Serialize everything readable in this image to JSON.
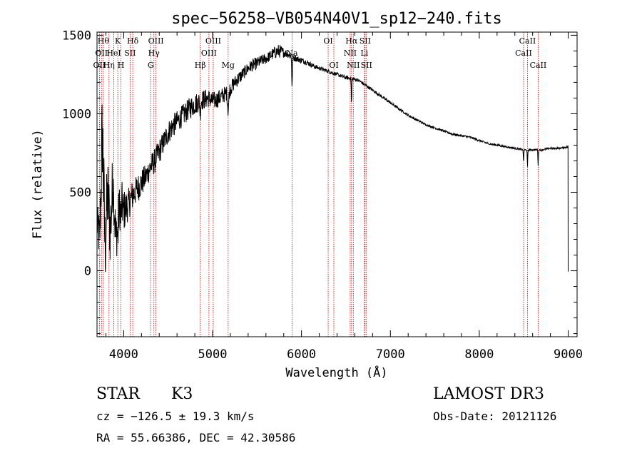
{
  "chart_data": {
    "type": "line",
    "title": "spec−56258−VB054N40V1_sp12−240.fits",
    "xlabel": "Wavelength (Å)",
    "ylabel": "Flux (relative)",
    "xlim": [
      3700,
      9100
    ],
    "ylim": [
      -420,
      1520
    ],
    "xticks": [
      4000,
      5000,
      6000,
      7000,
      8000,
      9000
    ],
    "yticks": [
      0,
      500,
      1000,
      1500
    ],
    "xtick_labels": [
      "4000",
      "5000",
      "6000",
      "7000",
      "8000",
      "9000"
    ],
    "ytick_labels": [
      "0",
      "500",
      "1000",
      "1500"
    ],
    "grid": false,
    "series": [
      {
        "name": "flux",
        "x": [
          3700,
          3730,
          3760,
          3790,
          3820,
          3850,
          3880,
          3910,
          3940,
          3970,
          4000,
          4050,
          4100,
          4150,
          4200,
          4250,
          4300,
          4350,
          4400,
          4450,
          4500,
          4550,
          4600,
          4650,
          4700,
          4750,
          4800,
          4850,
          4900,
          4950,
          5000,
          5050,
          5100,
          5150,
          5200,
          5250,
          5300,
          5350,
          5400,
          5450,
          5500,
          5550,
          5600,
          5650,
          5700,
          5750,
          5800,
          5850,
          5900,
          5950,
          6000,
          6050,
          6100,
          6150,
          6200,
          6250,
          6300,
          6350,
          6400,
          6450,
          6500,
          6550,
          6600,
          6650,
          6700,
          6750,
          6800,
          6850,
          6900,
          6950,
          7000,
          7100,
          7200,
          7300,
          7400,
          7500,
          7600,
          7700,
          7800,
          7900,
          8000,
          8100,
          8200,
          8300,
          8400,
          8500,
          8600,
          8700,
          8800,
          8900,
          9000
        ],
        "y": [
          300,
          200,
          900,
          150,
          500,
          250,
          600,
          200,
          350,
          450,
          380,
          420,
          480,
          520,
          560,
          600,
          660,
          700,
          760,
          820,
          880,
          920,
          950,
          980,
          1010,
          1040,
          1060,
          1080,
          1090,
          1100,
          1080,
          1090,
          1110,
          1130,
          1160,
          1200,
          1230,
          1260,
          1290,
          1310,
          1320,
          1340,
          1350,
          1370,
          1390,
          1400,
          1390,
          1380,
          1360,
          1350,
          1340,
          1330,
          1315,
          1300,
          1290,
          1280,
          1270,
          1260,
          1250,
          1240,
          1230,
          1225,
          1220,
          1210,
          1190,
          1170,
          1150,
          1130,
          1110,
          1090,
          1070,
          1030,
          990,
          960,
          930,
          910,
          890,
          870,
          860,
          850,
          830,
          810,
          800,
          790,
          780,
          770,
          770,
          770,
          780,
          780,
          790
        ],
        "noise": [
          120,
          180,
          350,
          300,
          250,
          250,
          200,
          180,
          160,
          150,
          140,
          100,
          100,
          90,
          90,
          80,
          80,
          80,
          80,
          75,
          75,
          75,
          70,
          70,
          70,
          70,
          70,
          65,
          65,
          60,
          60,
          55,
          55,
          50,
          50,
          45,
          45,
          40,
          40,
          40,
          40,
          35,
          35,
          35,
          40,
          45,
          30,
          25,
          25,
          20,
          20,
          18,
          16,
          15,
          14,
          13,
          12,
          12,
          12,
          12,
          12,
          12,
          12,
          10,
          10,
          10,
          10,
          10,
          10,
          9,
          9,
          8,
          8,
          8,
          7,
          7,
          7,
          7,
          7,
          7,
          7,
          6,
          6,
          6,
          6,
          6,
          6,
          6,
          6,
          6,
          6
        ]
      }
    ],
    "line_markers": [
      {
        "x": 3727,
        "label": "OII",
        "row": 2
      },
      {
        "x": 3750,
        "label": "OII",
        "row": 1
      },
      {
        "x": 3771,
        "label": "Hθ",
        "row": 0
      },
      {
        "x": 3835,
        "label": "Hη",
        "row": 2
      },
      {
        "x": 3889,
        "label": "HeI",
        "row": 1
      },
      {
        "x": 3934,
        "label": "K",
        "row": 0
      },
      {
        "x": 3969,
        "label": "H",
        "row": 2
      },
      {
        "x": 4072,
        "label": "SII",
        "row": 1
      },
      {
        "x": 4102,
        "label": "Hδ",
        "row": 0
      },
      {
        "x": 4304,
        "label": "G",
        "row": 2
      },
      {
        "x": 4340,
        "label": "Hγ",
        "row": 1
      },
      {
        "x": 4363,
        "label": "OIII",
        "row": 0
      },
      {
        "x": 4861,
        "label": "Hβ",
        "row": 2
      },
      {
        "x": 4959,
        "label": "OIII",
        "row": 1
      },
      {
        "x": 5007,
        "label": "OIII",
        "row": 0
      },
      {
        "x": 5175,
        "label": "Mg",
        "row": 2
      },
      {
        "x": 5894,
        "label": "Na",
        "row": 1
      },
      {
        "x": 6300,
        "label": "OI",
        "row": 0
      },
      {
        "x": 6364,
        "label": "OI",
        "row": 2
      },
      {
        "x": 6548,
        "label": "NII",
        "row": 1
      },
      {
        "x": 6563,
        "label": "Hα",
        "row": 0
      },
      {
        "x": 6583,
        "label": "NII",
        "row": 2
      },
      {
        "x": 6707,
        "label": "Li",
        "row": 1
      },
      {
        "x": 6716,
        "label": "SII",
        "row": 0
      },
      {
        "x": 6731,
        "label": "SII",
        "row": 2
      },
      {
        "x": 8498,
        "label": "CaII",
        "row": 1
      },
      {
        "x": 8542,
        "label": "CaII",
        "row": 0
      },
      {
        "x": 8662,
        "label": "CaII",
        "row": 2
      }
    ]
  },
  "info": {
    "object_class": "STAR",
    "subclass": "K3",
    "survey": "LAMOST DR3",
    "redshift_line": "cz = −126.5 ± 19.3 km/s",
    "obs_date": "Obs-Date: 20121126",
    "coords": "RA =  55.66386, DEC =  42.30586"
  },
  "colors": {
    "spectrum": "#000000",
    "marker": "#c00000",
    "axis": "#000000"
  }
}
